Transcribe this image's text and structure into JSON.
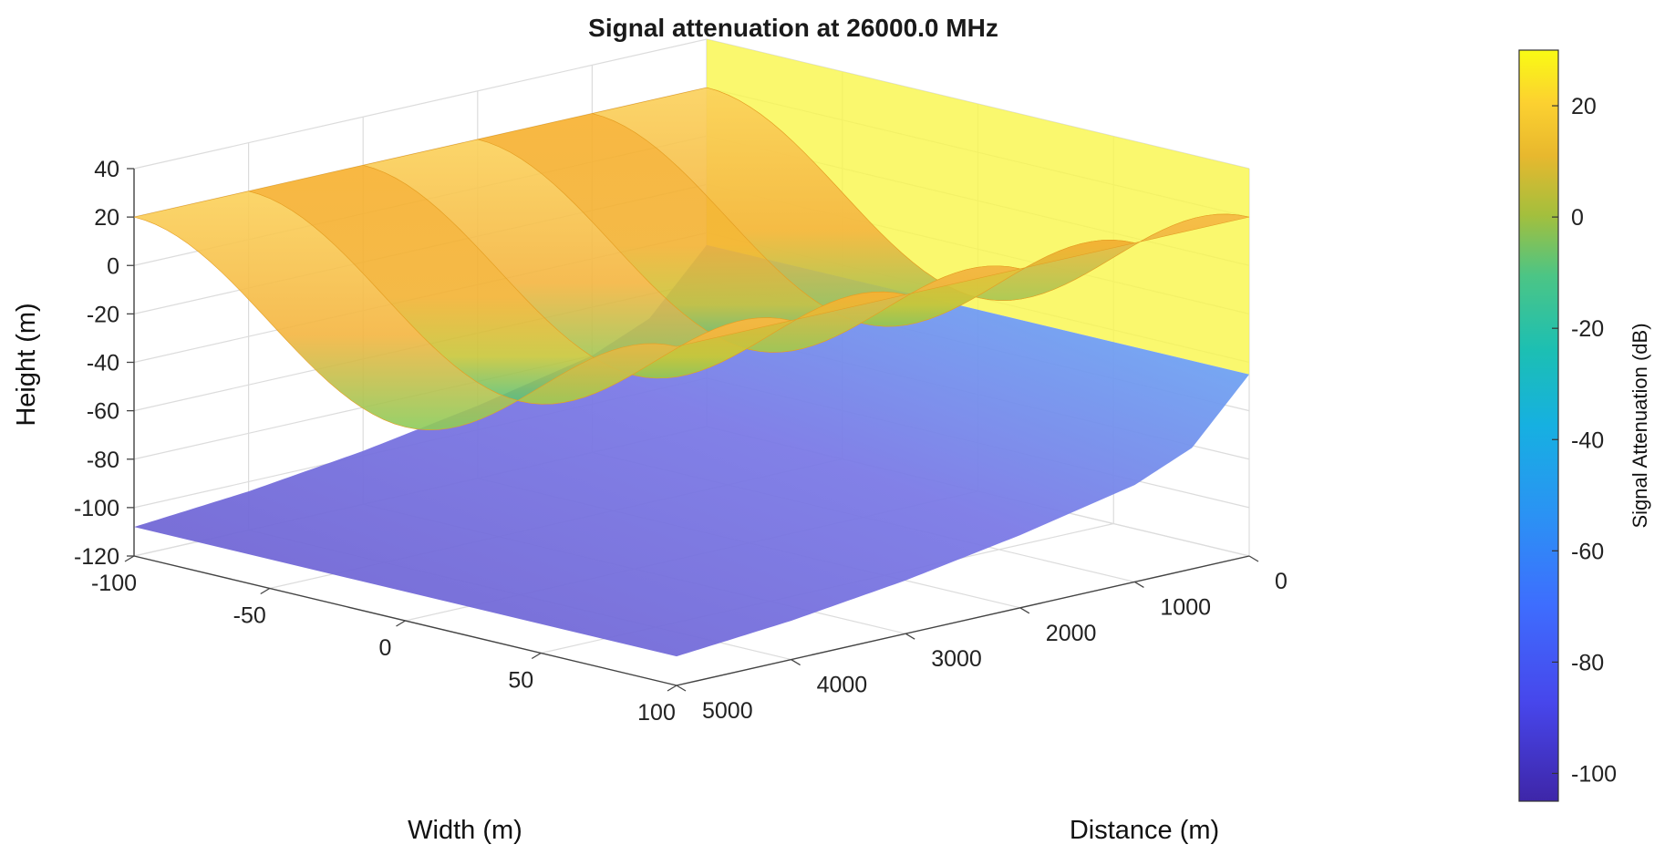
{
  "chart_data": {
    "type": "surface",
    "title": "Signal attenuation at 26000.0 MHz",
    "xlabel": "Width (m)",
    "ylabel": "Distance (m)",
    "zlabel": "Height (m)",
    "colorbar_label": "Signal Attenuation (dB)",
    "xlim": [
      -100,
      100
    ],
    "ylim": [
      0,
      5000
    ],
    "zlim": [
      -120,
      40
    ],
    "x_ticks": [
      -100,
      -50,
      0,
      50,
      100
    ],
    "y_ticks": [
      0,
      1000,
      2000,
      3000,
      4000,
      5000
    ],
    "z_ticks": [
      40,
      20,
      0,
      -20,
      -40,
      -60,
      -80,
      -100,
      -120
    ],
    "colorbar_ticks": [
      20,
      0,
      -20,
      -40,
      -60,
      -80,
      -100
    ],
    "colorbar_range": [
      -105,
      30
    ],
    "grid": true,
    "colorbar_position": "right",
    "colormap": "parula",
    "surfaces": [
      {
        "name": "terrain",
        "description_values": "ground surface rising from about -110 m at 5000 m distance to about -45 m near 0 m distance",
        "height_at_distance": {
          "distance": [
            0,
            500,
            1000,
            2000,
            3000,
            4000,
            5000
          ],
          "height": [
            -45,
            -70,
            -80,
            -90,
            -98,
            -104,
            -108
          ]
        },
        "attenuation_dB_range": [
          -95,
          -55
        ]
      },
      {
        "name": "wave_surface",
        "crest_height": 20,
        "trough_height": -40,
        "attenuation_dB_range": [
          -20,
          10
        ]
      },
      {
        "name": "near_plane",
        "distance": 0,
        "height_range": [
          -45,
          40
        ],
        "attenuation_dB": 28
      }
    ]
  }
}
